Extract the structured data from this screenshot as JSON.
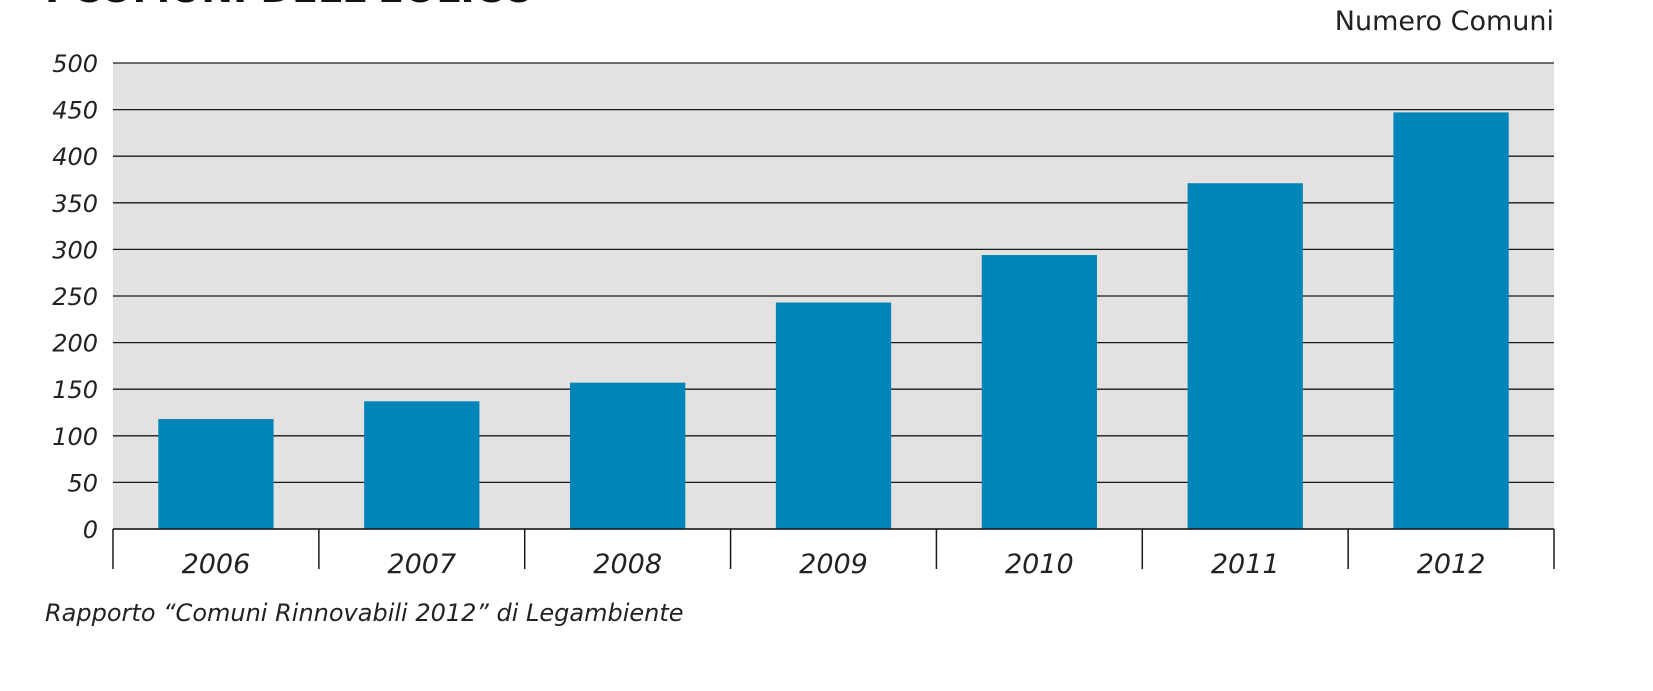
{
  "chart_data": {
    "type": "bar",
    "title": "I COMUNI DELL'EOLICO",
    "unit_label": "Numero Comuni",
    "categories": [
      "2006",
      "2007",
      "2008",
      "2009",
      "2010",
      "2011",
      "2012"
    ],
    "values": [
      118,
      137,
      157,
      243,
      294,
      371,
      447
    ],
    "ylim": [
      0,
      500
    ],
    "yticks": [
      "0",
      "50",
      "100",
      "150",
      "200",
      "250",
      "300",
      "350",
      "400",
      "450",
      "500"
    ],
    "grid": true,
    "bar_color": "#0085b8",
    "plot_background": "#e3e2e1",
    "source": "Rapporto “Comuni Rinnovabili 2012” di Legambiente"
  }
}
